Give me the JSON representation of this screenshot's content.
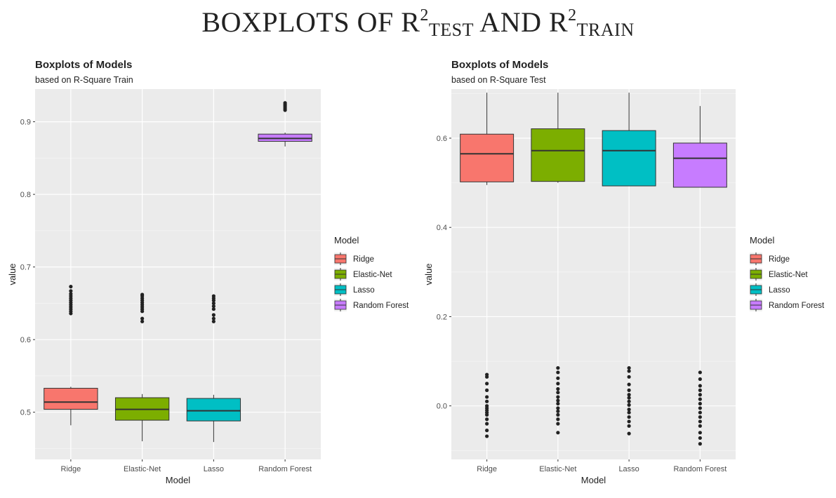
{
  "page_title": {
    "part1": "BOXPLOTS OF R",
    "sup1": "2",
    "sub1": "TEST",
    "part2": " AND R",
    "sup2": "2",
    "sub2": "TRAIN"
  },
  "legend": {
    "title": "Model",
    "items": [
      {
        "label": "Ridge",
        "color": "#F8766D"
      },
      {
        "label": "Elastic-Net",
        "color": "#7CAE00"
      },
      {
        "label": "Lasso",
        "color": "#00BFC4"
      },
      {
        "label": "Random Forest",
        "color": "#C77CFF"
      }
    ]
  },
  "chart_data": [
    {
      "type": "boxplot",
      "title": "Boxplots of Models",
      "subtitle": "based on R-Square Train",
      "xlabel": "Model",
      "ylabel": "value",
      "categories": [
        "Ridge",
        "Elastic-Net",
        "Lasso",
        "Random Forest"
      ],
      "ylim": [
        0.435,
        0.945
      ],
      "yticks": [
        0.5,
        0.6,
        0.7,
        0.8,
        0.9
      ],
      "ytick_labels": [
        "0.5",
        "0.6",
        "0.7",
        "0.8",
        "0.9"
      ],
      "grid": true,
      "legend_position": "right",
      "boxes": [
        {
          "name": "Ridge",
          "whisker_low": 0.482,
          "q1": 0.504,
          "median": 0.514,
          "q3": 0.533,
          "whisker_high": 0.535,
          "outliers": [
            0.636,
            0.639,
            0.642,
            0.645,
            0.648,
            0.651,
            0.654,
            0.657,
            0.66,
            0.663,
            0.667,
            0.673
          ]
        },
        {
          "name": "Elastic-Net",
          "whisker_low": 0.46,
          "q1": 0.489,
          "median": 0.504,
          "q3": 0.52,
          "whisker_high": 0.525,
          "outliers": [
            0.625,
            0.629,
            0.639,
            0.642,
            0.645,
            0.648,
            0.651,
            0.654,
            0.657,
            0.66,
            0.662
          ]
        },
        {
          "name": "Lasso",
          "whisker_low": 0.459,
          "q1": 0.488,
          "median": 0.502,
          "q3": 0.519,
          "whisker_high": 0.524,
          "outliers": [
            0.625,
            0.629,
            0.634,
            0.642,
            0.646,
            0.65,
            0.654,
            0.657,
            0.66
          ]
        },
        {
          "name": "Random Forest",
          "whisker_low": 0.866,
          "q1": 0.873,
          "median": 0.877,
          "q3": 0.883,
          "whisker_high": 0.885,
          "outliers": [
            0.916,
            0.918,
            0.92,
            0.922,
            0.924,
            0.926
          ]
        }
      ]
    },
    {
      "type": "boxplot",
      "title": "Boxplots of Models",
      "subtitle": "based on R-Square Test",
      "xlabel": "Model",
      "ylabel": "value",
      "categories": [
        "Ridge",
        "Elastic-Net",
        "Lasso",
        "Random Forest"
      ],
      "ylim": [
        -0.12,
        0.71
      ],
      "yticks": [
        0.0,
        0.2,
        0.4,
        0.6
      ],
      "ytick_labels": [
        "0.0",
        "0.2",
        "0.4",
        "0.6"
      ],
      "grid": true,
      "legend_position": "right",
      "boxes": [
        {
          "name": "Ridge",
          "whisker_low": 0.495,
          "q1": 0.502,
          "median": 0.565,
          "q3": 0.609,
          "whisker_high": 0.702,
          "outliers": [
            0.07,
            0.065,
            0.05,
            0.035,
            0.02,
            0.01,
            0.0,
            -0.005,
            -0.01,
            -0.015,
            -0.02,
            -0.03,
            -0.04,
            -0.055,
            -0.068
          ]
        },
        {
          "name": "Elastic-Net",
          "whisker_low": 0.5,
          "q1": 0.503,
          "median": 0.572,
          "q3": 0.621,
          "whisker_high": 0.702,
          "outliers": [
            0.085,
            0.075,
            0.062,
            0.05,
            0.038,
            0.03,
            0.02,
            0.012,
            0.005,
            -0.005,
            -0.012,
            -0.02,
            -0.03,
            -0.04,
            -0.06
          ]
        },
        {
          "name": "Lasso",
          "whisker_low": 0.493,
          "q1": 0.493,
          "median": 0.572,
          "q3": 0.617,
          "whisker_high": 0.702,
          "outliers": [
            0.085,
            0.078,
            0.065,
            0.048,
            0.035,
            0.025,
            0.018,
            0.01,
            0.002,
            -0.008,
            -0.015,
            -0.025,
            -0.035,
            -0.045,
            -0.062
          ]
        },
        {
          "name": "Random Forest",
          "whisker_low": 0.49,
          "q1": 0.49,
          "median": 0.555,
          "q3": 0.589,
          "whisker_high": 0.672,
          "outliers": [
            0.075,
            0.06,
            0.045,
            0.035,
            0.025,
            0.015,
            0.005,
            -0.005,
            -0.015,
            -0.025,
            -0.035,
            -0.045,
            -0.06,
            -0.072,
            -0.085
          ]
        }
      ]
    }
  ]
}
